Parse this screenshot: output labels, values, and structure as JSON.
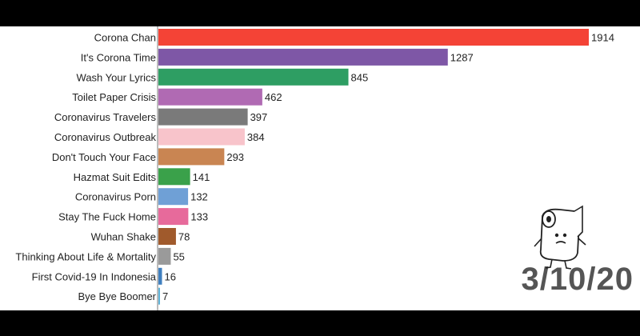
{
  "chart_data": {
    "type": "bar",
    "orientation": "horizontal",
    "categories": [
      "Corona Chan",
      "It's Corona Time",
      "Wash Your Lyrics",
      "Toilet Paper Crisis",
      "Coronavirus Travelers",
      "Coronavirus Outbreak",
      "Don't Touch Your Face",
      "Hazmat Suit Edits",
      "Coronavirus Porn",
      "Stay The Fuck Home",
      "Wuhan Shake",
      "Thinking About Life & Mortality",
      "First Covid-19 In Indonesia",
      "Bye Bye Boomer"
    ],
    "values": [
      1914,
      1287,
      845,
      462,
      397,
      384,
      293,
      141,
      132,
      133,
      78,
      55,
      16,
      7
    ],
    "value_labels": [
      "1914",
      "1287",
      "845",
      "462",
      "397",
      "384",
      "293",
      "141",
      "132",
      "133",
      "78",
      "55",
      "16",
      "7"
    ],
    "colors": [
      "#f44336",
      "#7e57a6",
      "#2e9e63",
      "#b06ab3",
      "#7a7a7a",
      "#f8c4cb",
      "#c98552",
      "#3aa14a",
      "#6fa0d6",
      "#e76a9b",
      "#a05a2c",
      "#9a9a9a",
      "#3f7fbf",
      "#5fb3d8"
    ],
    "xlim": [
      0,
      1914
    ],
    "date": "3/10/20",
    "axis_line": "#777777"
  }
}
